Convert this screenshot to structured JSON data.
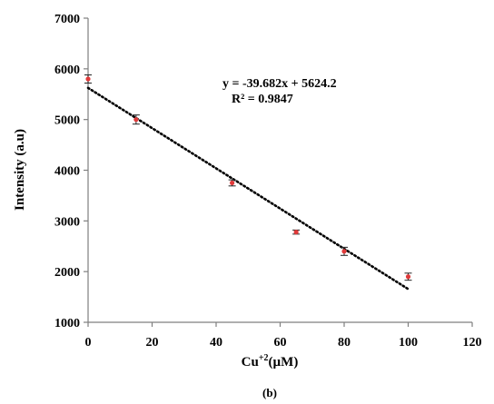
{
  "chart_data": {
    "type": "scatter",
    "title": "",
    "xlabel": "Cu+2(µM)",
    "xlabel_base": "Cu",
    "xlabel_sup": "+2",
    "xlabel_unit": "(µM)",
    "ylabel": "Intensity (a.u)",
    "xlim": [
      0,
      120
    ],
    "ylim": [
      1000,
      7000
    ],
    "x_ticks": [
      0,
      20,
      40,
      60,
      80,
      100,
      120
    ],
    "y_ticks": [
      1000,
      2000,
      3000,
      4000,
      5000,
      6000,
      7000
    ],
    "grid": false,
    "legend": "none",
    "series": [
      {
        "x": [
          0,
          15,
          45,
          65,
          80,
          100
        ],
        "y": [
          5800,
          5000,
          3750,
          2780,
          2400,
          1900
        ],
        "error": [
          80,
          90,
          60,
          40,
          80,
          70
        ],
        "marker_color": "#e03a3a"
      }
    ],
    "trendline": {
      "slope": -39.682,
      "intercept": 5624.2,
      "x_range": [
        0,
        100
      ],
      "style": "dotted",
      "color": "#000000"
    },
    "annotations": {
      "equation": "y = -39.682x + 5624.2",
      "r_squared": "R² = 0.9847"
    },
    "panel_label": "(b)"
  }
}
